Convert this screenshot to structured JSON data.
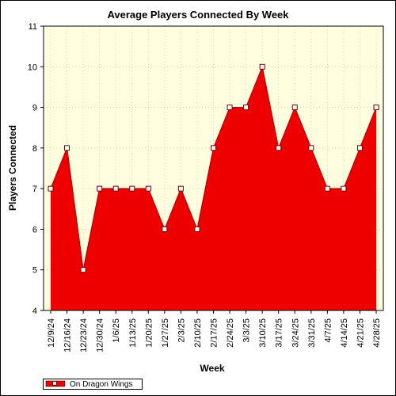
{
  "chart_data": {
    "type": "area",
    "title": "Average Players Connected By Week",
    "xlabel": "Week",
    "ylabel": "Players Connected",
    "ylim": [
      4,
      11
    ],
    "yticks": [
      4,
      5,
      6,
      7,
      8,
      9,
      10,
      11
    ],
    "grid": true,
    "legend_position": "bottom-left",
    "categories": [
      "12/9/24",
      "12/16/24",
      "12/23/24",
      "12/30/24",
      "1/6/25",
      "1/13/25",
      "1/20/25",
      "1/27/25",
      "2/3/25",
      "2/10/25",
      "2/17/25",
      "2/24/25",
      "3/3/25",
      "3/10/25",
      "3/17/25",
      "3/24/25",
      "3/31/25",
      "4/7/25",
      "4/14/25",
      "4/21/25",
      "4/28/25"
    ],
    "series": [
      {
        "name": "On Dragon Wings",
        "color": "#ee0000",
        "values": [
          7,
          8,
          5,
          7,
          7,
          7,
          7,
          6,
          7,
          6,
          8,
          9,
          9,
          10,
          8,
          9,
          8,
          7,
          7,
          8,
          9
        ]
      }
    ],
    "plot_background": "#ffffe0"
  }
}
